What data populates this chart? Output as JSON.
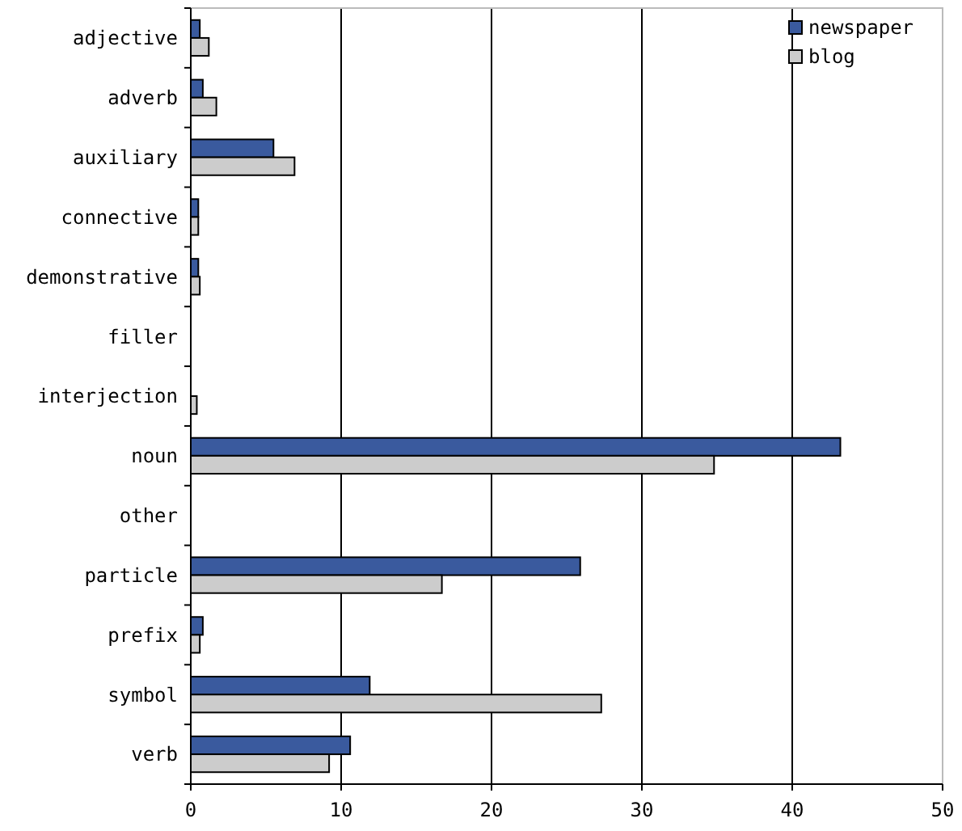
{
  "chart_data": {
    "type": "bar",
    "orientation": "horizontal",
    "categories": [
      "adjective",
      "adverb",
      "auxiliary",
      "connective",
      "demonstrative",
      "filler",
      "interjection",
      "noun",
      "other",
      "particle",
      "prefix",
      "symbol",
      "verb"
    ],
    "series": [
      {
        "name": "newspaper",
        "color": "#3a5a9e",
        "values": [
          0.6,
          0.8,
          5.5,
          0.5,
          0.5,
          0,
          0,
          43.2,
          0,
          25.9,
          0.8,
          11.9,
          10.6
        ]
      },
      {
        "name": "blog",
        "color": "#cccccc",
        "values": [
          1.2,
          1.7,
          6.9,
          0.5,
          0.6,
          0,
          0.4,
          34.8,
          0,
          16.7,
          0.6,
          27.3,
          9.2
        ]
      }
    ],
    "xlim": [
      0,
      50
    ],
    "xticks": [
      0,
      10,
      20,
      30,
      40,
      50
    ],
    "grid": "x",
    "legend": "top right"
  }
}
